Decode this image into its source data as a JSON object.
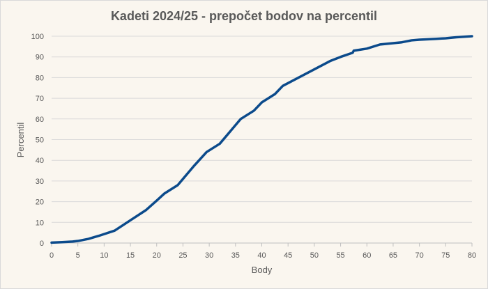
{
  "chart_data": {
    "type": "line",
    "title": "Kadeti 2024/25 - prepočet bodov na percentil",
    "xlabel": "Body",
    "ylabel": "Percentil",
    "xlim": [
      0,
      80
    ],
    "ylim": [
      0,
      100
    ],
    "xticks": [
      0,
      5,
      10,
      15,
      20,
      25,
      30,
      35,
      40,
      45,
      50,
      55,
      60,
      65,
      70,
      75,
      80
    ],
    "yticks": [
      0,
      10,
      20,
      30,
      40,
      50,
      60,
      70,
      80,
      90,
      100
    ],
    "grid": true,
    "legend": "none",
    "series_color": "#0b4a8b",
    "series": [
      {
        "x": [
          0,
          2,
          4,
          5,
          7,
          9,
          12,
          15,
          18,
          20,
          21.5,
          24,
          27,
          29.5,
          32,
          34,
          36,
          38.5,
          40,
          42.5,
          44,
          47,
          50,
          53,
          55,
          57.3,
          57.5,
          60,
          62.5,
          66.5,
          68.5,
          70,
          73,
          75,
          77,
          80
        ],
        "y": [
          0.2,
          0.4,
          0.7,
          1,
          2,
          3.5,
          6,
          11,
          16,
          20.5,
          24,
          28,
          37,
          44,
          48,
          54,
          60,
          64,
          68,
          72,
          76,
          80,
          84,
          88,
          90,
          92,
          93,
          94,
          96,
          97,
          98,
          98.3,
          98.7,
          99,
          99.5,
          100
        ]
      }
    ]
  }
}
